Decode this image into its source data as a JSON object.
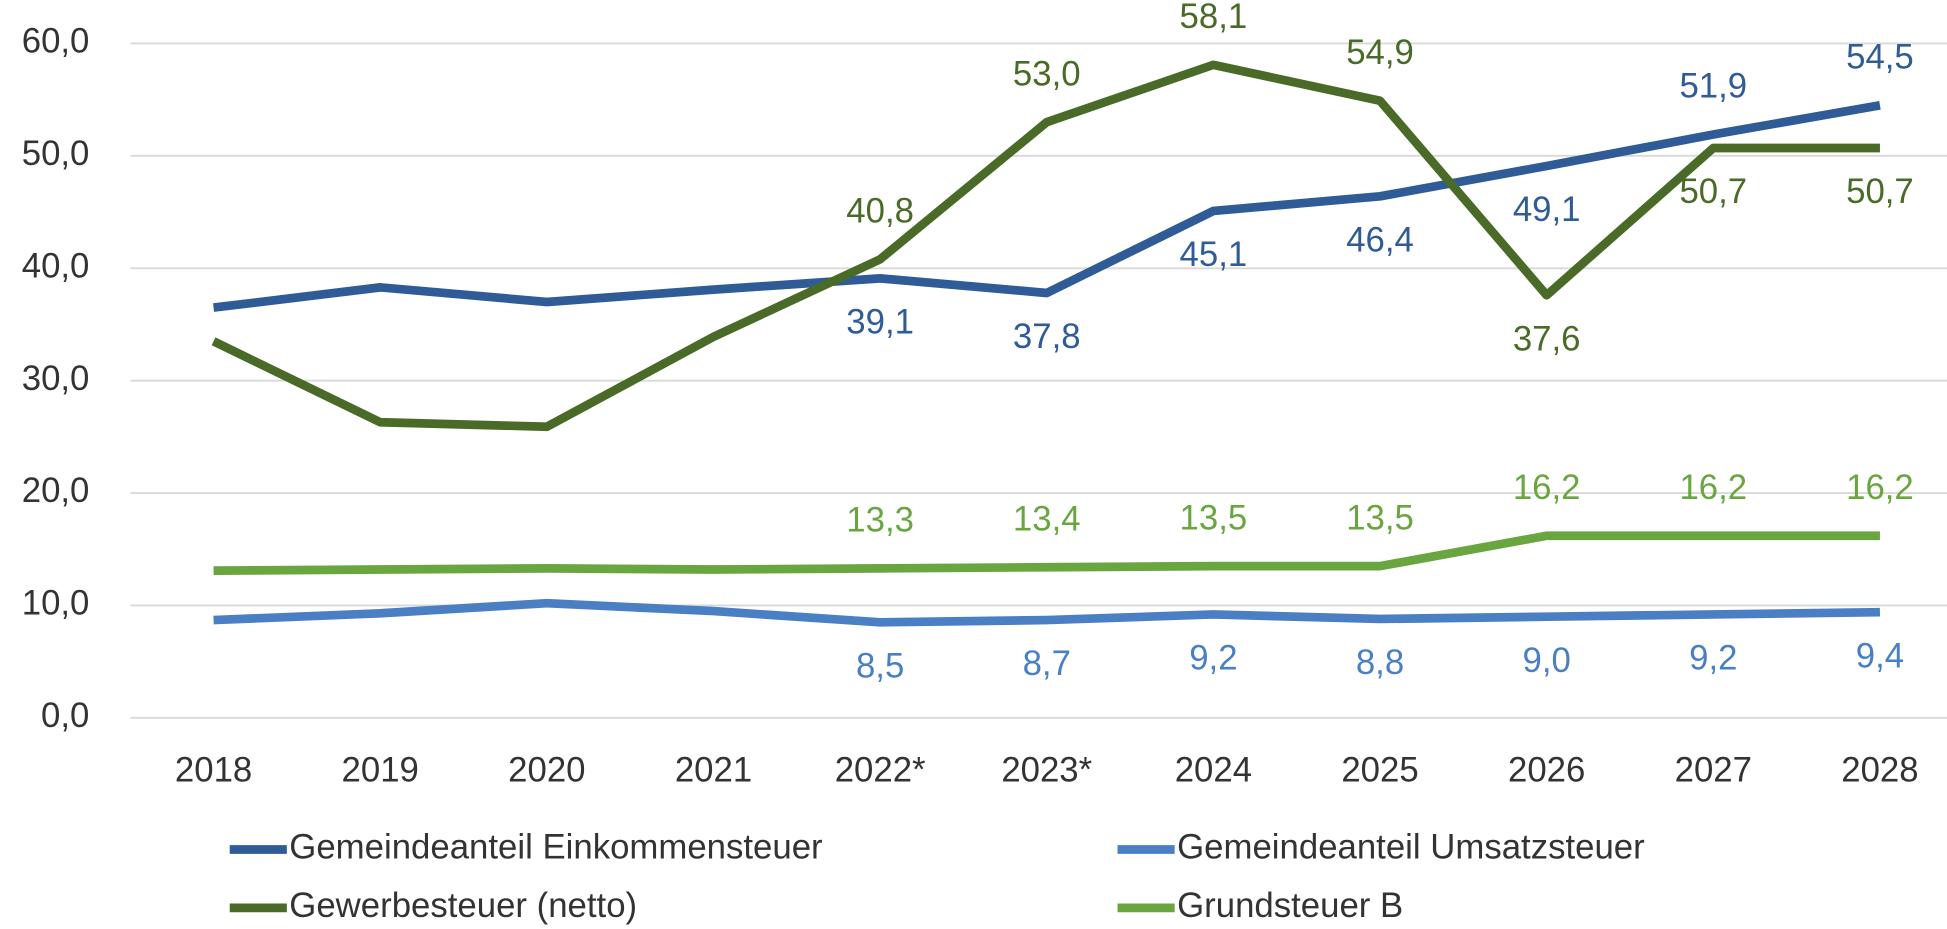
{
  "chart_data": {
    "type": "line",
    "categories": [
      "2018",
      "2019",
      "2020",
      "2021",
      "2022*",
      "2023*",
      "2024",
      "2025",
      "2026",
      "2027",
      "2028"
    ],
    "ylim": [
      0,
      60
    ],
    "yticks": [
      {
        "value": 0,
        "label": "0,0"
      },
      {
        "value": 10,
        "label": "10,0"
      },
      {
        "value": 20,
        "label": "20,0"
      },
      {
        "value": 30,
        "label": "30,0"
      },
      {
        "value": 40,
        "label": "40,0"
      },
      {
        "value": 50,
        "label": "50,0"
      },
      {
        "value": 60,
        "label": "60,0"
      }
    ],
    "grid": true,
    "series": [
      {
        "name": "Gemeindeanteil Einkommensteuer",
        "color": "#2f5b96",
        "values": [
          36.5,
          38.3,
          37.0,
          38.1,
          39.1,
          37.8,
          45.1,
          46.4,
          49.1,
          51.9,
          54.5
        ],
        "value_labels": [
          null,
          null,
          null,
          null,
          "39,1",
          "37,8",
          "45,1",
          "46,4",
          "49,1",
          "51,9",
          "54,5"
        ]
      },
      {
        "name": "Gemeindeanteil Umsatzsteuer",
        "color": "#4a7fc4",
        "values": [
          8.7,
          9.3,
          10.2,
          9.5,
          8.5,
          8.7,
          9.2,
          8.8,
          9.0,
          9.2,
          9.4
        ],
        "value_labels": [
          null,
          null,
          null,
          null,
          "8,5",
          "8,7",
          "9,2",
          "8,8",
          "9,0",
          "9,2",
          "9,4"
        ]
      },
      {
        "name": "Gewerbesteuer (netto)",
        "color": "#4a6a27",
        "values": [
          33.5,
          26.3,
          25.9,
          33.9,
          40.8,
          53.0,
          58.1,
          54.9,
          37.6,
          50.7,
          50.7
        ],
        "value_labels": [
          null,
          null,
          null,
          null,
          "40,8",
          "53,0",
          "58,1",
          "54,9",
          "37,6",
          "50,7",
          "50,7"
        ]
      },
      {
        "name": "Grundsteuer B",
        "color": "#6aa640",
        "values": [
          13.1,
          13.2,
          13.3,
          13.2,
          13.3,
          13.4,
          13.5,
          13.5,
          16.2,
          16.2,
          16.2
        ],
        "value_labels": [
          null,
          null,
          null,
          null,
          "13,3",
          "13,4",
          "13,5",
          "13,5",
          "16,2",
          "16,2",
          "16,2"
        ]
      }
    ]
  }
}
